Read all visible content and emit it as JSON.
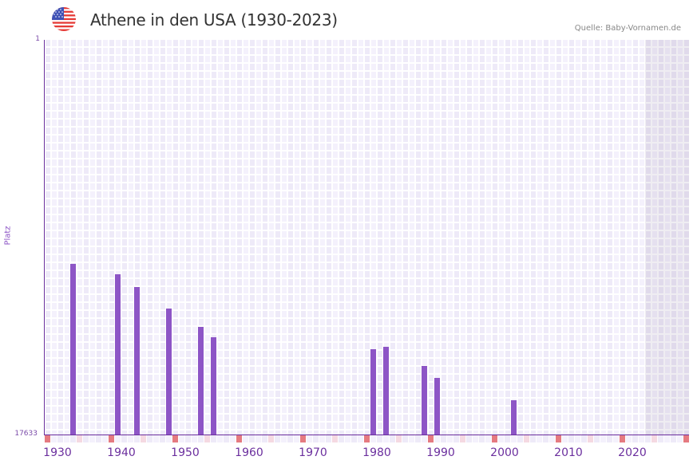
{
  "header": {
    "title": "Athene in den USA (1930-2023)",
    "source": "Quelle: Baby-Vornamen.de",
    "flag_icon": "us-flag-icon"
  },
  "colors": {
    "bar": "#8d55c6",
    "axis": "#6b2f9e",
    "grid_a": "#eeeaf8",
    "grid_b": "#f4f1fc",
    "decade_marker": "#e57a80",
    "half_decade_marker": "#f5d9e2"
  },
  "chart_data": {
    "type": "bar",
    "title": "Athene in den USA (1930-2023)",
    "xlabel": "",
    "ylabel": "Platz",
    "ylim": [
      17633,
      1
    ],
    "y_inverted": true,
    "y_ticks": [
      "1",
      "17633"
    ],
    "x_ticks": [
      "1930",
      "1940",
      "1950",
      "1960",
      "1970",
      "1980",
      "1990",
      "2000",
      "2010",
      "2020"
    ],
    "x_range": [
      1928,
      2028
    ],
    "shaded_region": [
      2022,
      2028
    ],
    "grid": true,
    "legend": null,
    "categories": [
      1932,
      1939,
      1942,
      1947,
      1952,
      1954,
      1979,
      1981,
      1987,
      1989,
      2001
    ],
    "values": [
      7620,
      7160,
      6590,
      5630,
      4810,
      4350,
      3820,
      3920,
      3070,
      2540,
      1540
    ],
    "note": "values are approximate rank heights read off the linear axis (1 at top, 17633 at baseline); shown as bar height above baseline measured in rank units"
  },
  "axis": {
    "y_top": "1",
    "y_bottom": "17633",
    "y_label": "Platz",
    "x_labels": [
      "1930",
      "1940",
      "1950",
      "1960",
      "1970",
      "1980",
      "1990",
      "2000",
      "2010",
      "2020"
    ]
  }
}
